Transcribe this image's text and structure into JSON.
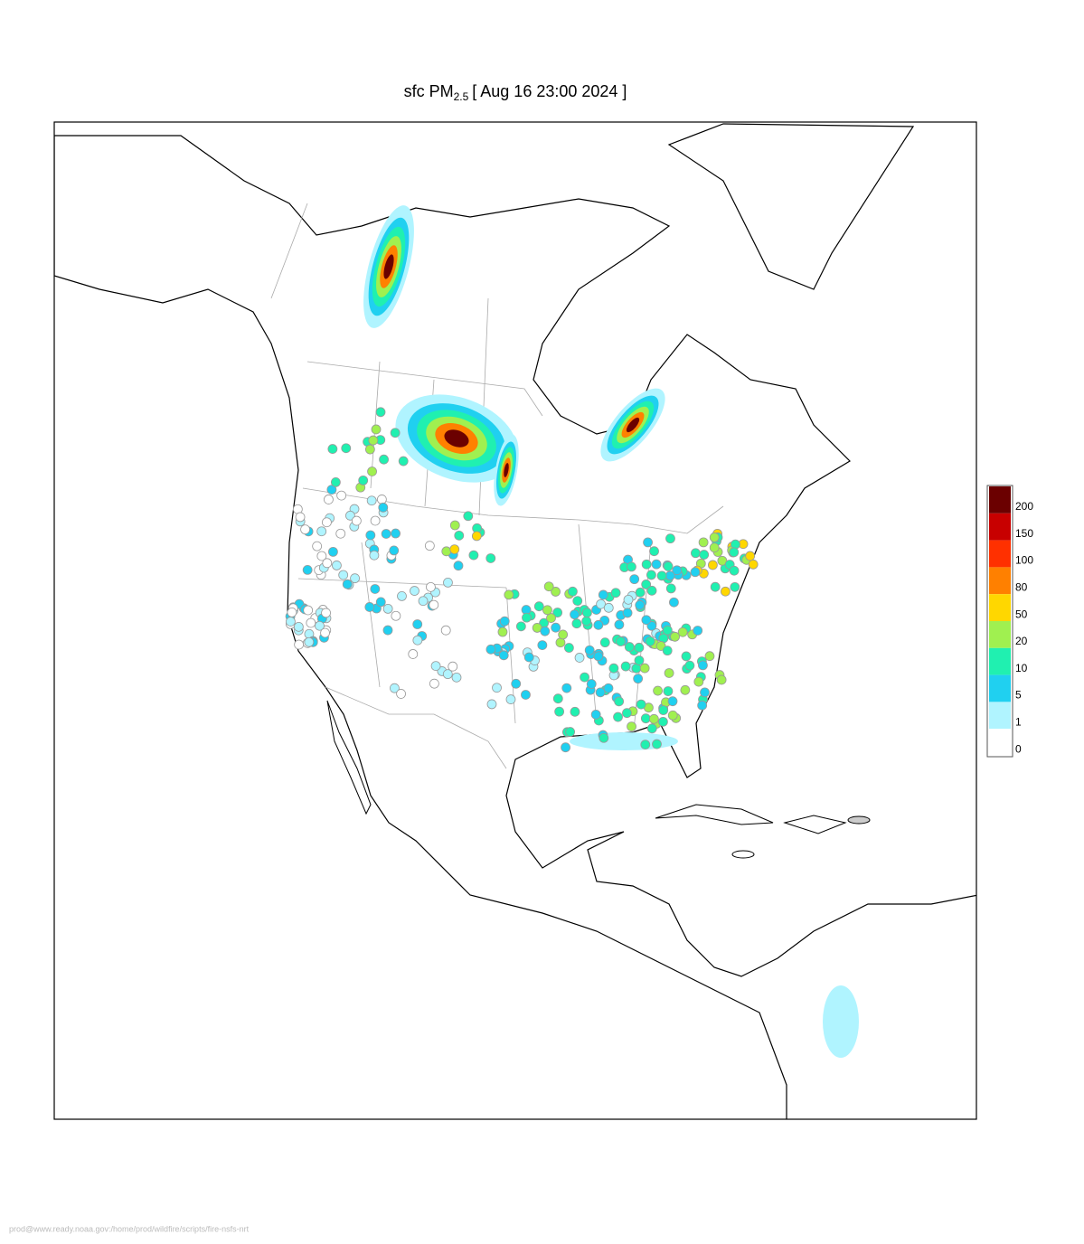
{
  "title": {
    "main": "sfc PM",
    "subscript": "2.5",
    "time": "[ Aug 16 23:00 2024 ]"
  },
  "legend": {
    "levels": [
      {
        "label": "200",
        "color": "#6b0000"
      },
      {
        "label": "150",
        "color": "#c80000"
      },
      {
        "label": "100",
        "color": "#ff3000"
      },
      {
        "label": "80",
        "color": "#ff8000"
      },
      {
        "label": "50",
        "color": "#ffd700"
      },
      {
        "label": "20",
        "color": "#a0f050"
      },
      {
        "label": "10",
        "color": "#20f0b0"
      },
      {
        "label": "5",
        "color": "#20d0f0"
      },
      {
        "label": "1",
        "color": "#b0f4ff"
      },
      {
        "label": "0",
        "color": "#ffffff"
      }
    ]
  },
  "footer": "prod@www.ready.noaa.gov:/home/prod/wildfire/scripts/fire-nsfs-nrt"
}
